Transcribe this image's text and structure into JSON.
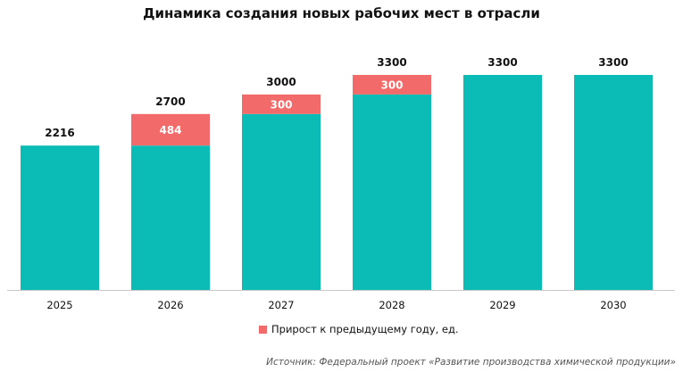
{
  "chart_data": {
    "type": "bar",
    "stacked": true,
    "title": "Динамика создания новых рабочих мест в отрасли",
    "categories": [
      "2025",
      "2026",
      "2027",
      "2028",
      "2029",
      "2030"
    ],
    "series": [
      {
        "values": [
          2216,
          2216,
          2700,
          3000,
          3300,
          3300
        ],
        "color": "#0BBCB6"
      },
      {
        "name": "Прирост к предыдущему году, ед.",
        "values": [
          0,
          484,
          300,
          300,
          0,
          0
        ],
        "color": "#F26A69"
      }
    ],
    "totals": [
      2216,
      2700,
      3000,
      3300,
      3300,
      3300
    ],
    "ylim": [
      0,
      3300
    ],
    "grid": false,
    "legend": "bottom",
    "source": "Источник: Федеральный проект «Развитие производства химической продукции»"
  }
}
